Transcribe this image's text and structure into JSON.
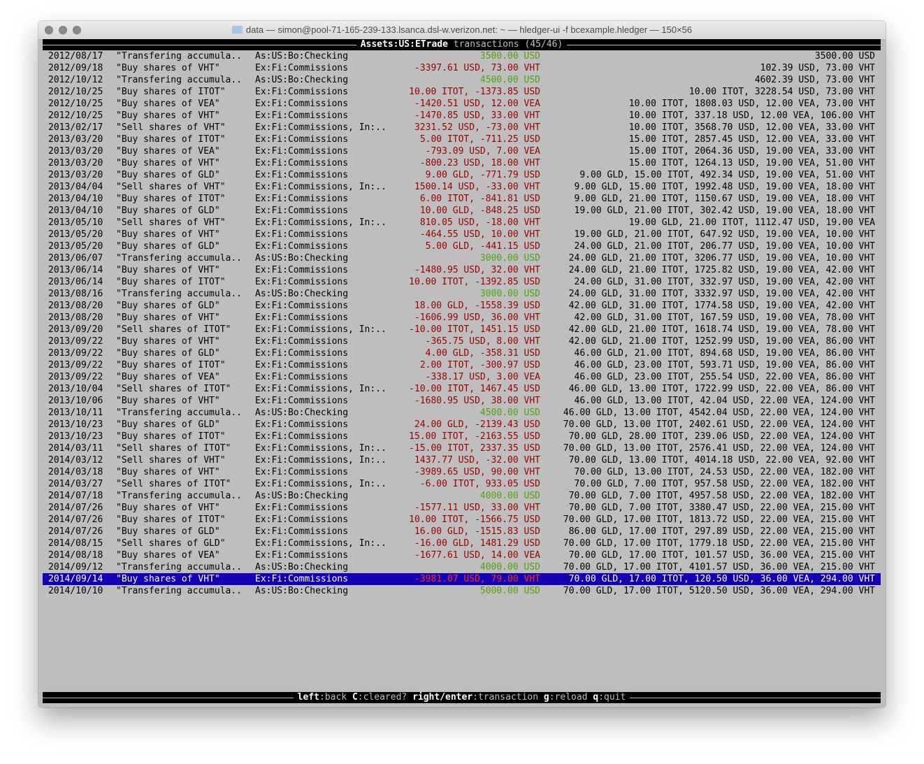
{
  "window": {
    "title": "data — simon@pool-71-165-239-133.lsanca.dsl-w.verizon.net: ~ — hledger-ui -f bcexample.hledger — 150×56"
  },
  "header": {
    "account": "Assets:US:ETrade",
    "rest": " transactions (45/46)"
  },
  "colors": {
    "positive": "#52a20a",
    "negative": "#9a0000",
    "selection": "#1400b4"
  },
  "selected_index": 44,
  "rows": [
    {
      "date": "2012/08/17",
      "desc": "\"Transfering accumula..",
      "account": "As:US:Bo:Checking",
      "amount": "3500.00 USD",
      "sign": "green",
      "balance": "3500.00 USD"
    },
    {
      "date": "2012/09/18",
      "desc": "\"Buy shares of VHT\"",
      "account": "Ex:Fi:Commissions",
      "amount": "-3397.61 USD, 73.00 VHT",
      "sign": "red",
      "balance": "102.39 USD, 73.00 VHT"
    },
    {
      "date": "2012/10/12",
      "desc": "\"Transfering accumula..",
      "account": "As:US:Bo:Checking",
      "amount": "4500.00 USD",
      "sign": "green",
      "balance": "4602.39 USD, 73.00 VHT"
    },
    {
      "date": "2012/10/25",
      "desc": "\"Buy shares of ITOT\"",
      "account": "Ex:Fi:Commissions",
      "amount": "10.00 ITOT, -1373.85 USD",
      "sign": "red",
      "balance": "10.00 ITOT, 3228.54 USD, 73.00 VHT"
    },
    {
      "date": "2012/10/25",
      "desc": "\"Buy shares of VEA\"",
      "account": "Ex:Fi:Commissions",
      "amount": "-1420.51 USD, 12.00 VEA",
      "sign": "red",
      "balance": "10.00 ITOT, 1808.03 USD, 12.00 VEA, 73.00 VHT"
    },
    {
      "date": "2012/10/25",
      "desc": "\"Buy shares of VHT\"",
      "account": "Ex:Fi:Commissions",
      "amount": "-1470.85 USD, 33.00 VHT",
      "sign": "red",
      "balance": "10.00 ITOT, 337.18 USD, 12.00 VEA, 106.00 VHT"
    },
    {
      "date": "2013/02/17",
      "desc": "\"Sell shares of VHT\"",
      "account": "Ex:Fi:Commissions, In:..",
      "amount": "3231.52 USD, -73.00 VHT",
      "sign": "red",
      "balance": "10.00 ITOT, 3568.70 USD, 12.00 VEA, 33.00 VHT"
    },
    {
      "date": "2013/03/20",
      "desc": "\"Buy shares of ITOT\"",
      "account": "Ex:Fi:Commissions",
      "amount": "5.00 ITOT, -711.25 USD",
      "sign": "red",
      "balance": "15.00 ITOT, 2857.45 USD, 12.00 VEA, 33.00 VHT"
    },
    {
      "date": "2013/03/20",
      "desc": "\"Buy shares of VEA\"",
      "account": "Ex:Fi:Commissions",
      "amount": "-793.09 USD, 7.00 VEA",
      "sign": "red",
      "balance": "15.00 ITOT, 2064.36 USD, 19.00 VEA, 33.00 VHT"
    },
    {
      "date": "2013/03/20",
      "desc": "\"Buy shares of VHT\"",
      "account": "Ex:Fi:Commissions",
      "amount": "-800.23 USD, 18.00 VHT",
      "sign": "red",
      "balance": "15.00 ITOT, 1264.13 USD, 19.00 VEA, 51.00 VHT"
    },
    {
      "date": "2013/03/20",
      "desc": "\"Buy shares of GLD\"",
      "account": "Ex:Fi:Commissions",
      "amount": "9.00 GLD, -771.79 USD",
      "sign": "red",
      "balance": "9.00 GLD, 15.00 ITOT, 492.34 USD, 19.00 VEA, 51.00 VHT"
    },
    {
      "date": "2013/04/04",
      "desc": "\"Sell shares of VHT\"",
      "account": "Ex:Fi:Commissions, In:..",
      "amount": "1500.14 USD, -33.00 VHT",
      "sign": "red",
      "balance": "9.00 GLD, 15.00 ITOT, 1992.48 USD, 19.00 VEA, 18.00 VHT"
    },
    {
      "date": "2013/04/10",
      "desc": "\"Buy shares of ITOT\"",
      "account": "Ex:Fi:Commissions",
      "amount": "6.00 ITOT, -841.81 USD",
      "sign": "red",
      "balance": "9.00 GLD, 21.00 ITOT, 1150.67 USD, 19.00 VEA, 18.00 VHT"
    },
    {
      "date": "2013/04/10",
      "desc": "\"Buy shares of GLD\"",
      "account": "Ex:Fi:Commissions",
      "amount": "10.00 GLD, -848.25 USD",
      "sign": "red",
      "balance": "19.00 GLD, 21.00 ITOT, 302.42 USD, 19.00 VEA, 18.00 VHT"
    },
    {
      "date": "2013/05/10",
      "desc": "\"Sell shares of VHT\"",
      "account": "Ex:Fi:Commissions, In:..",
      "amount": "810.05 USD, -18.00 VHT",
      "sign": "red",
      "balance": "19.00 GLD, 21.00 ITOT, 1112.47 USD, 19.00 VEA"
    },
    {
      "date": "2013/05/20",
      "desc": "\"Buy shares of VHT\"",
      "account": "Ex:Fi:Commissions",
      "amount": "-464.55 USD, 10.00 VHT",
      "sign": "red",
      "balance": "19.00 GLD, 21.00 ITOT, 647.92 USD, 19.00 VEA, 10.00 VHT"
    },
    {
      "date": "2013/05/20",
      "desc": "\"Buy shares of GLD\"",
      "account": "Ex:Fi:Commissions",
      "amount": "5.00 GLD, -441.15 USD",
      "sign": "red",
      "balance": "24.00 GLD, 21.00 ITOT, 206.77 USD, 19.00 VEA, 10.00 VHT"
    },
    {
      "date": "2013/06/07",
      "desc": "\"Transfering accumula..",
      "account": "As:US:Bo:Checking",
      "amount": "3000.00 USD",
      "sign": "green",
      "balance": "24.00 GLD, 21.00 ITOT, 3206.77 USD, 19.00 VEA, 10.00 VHT"
    },
    {
      "date": "2013/06/14",
      "desc": "\"Buy shares of VHT\"",
      "account": "Ex:Fi:Commissions",
      "amount": "-1480.95 USD, 32.00 VHT",
      "sign": "red",
      "balance": "24.00 GLD, 21.00 ITOT, 1725.82 USD, 19.00 VEA, 42.00 VHT"
    },
    {
      "date": "2013/06/14",
      "desc": "\"Buy shares of ITOT\"",
      "account": "Ex:Fi:Commissions",
      "amount": "10.00 ITOT, -1392.85 USD",
      "sign": "red",
      "balance": "24.00 GLD, 31.00 ITOT, 332.97 USD, 19.00 VEA, 42.00 VHT"
    },
    {
      "date": "2013/08/16",
      "desc": "\"Transfering accumula..",
      "account": "As:US:Bo:Checking",
      "amount": "3000.00 USD",
      "sign": "green",
      "balance": "24.00 GLD, 31.00 ITOT, 3332.97 USD, 19.00 VEA, 42.00 VHT"
    },
    {
      "date": "2013/08/20",
      "desc": "\"Buy shares of GLD\"",
      "account": "Ex:Fi:Commissions",
      "amount": "18.00 GLD, -1558.39 USD",
      "sign": "red",
      "balance": "42.00 GLD, 31.00 ITOT, 1774.58 USD, 19.00 VEA, 42.00 VHT"
    },
    {
      "date": "2013/08/20",
      "desc": "\"Buy shares of VHT\"",
      "account": "Ex:Fi:Commissions",
      "amount": "-1606.99 USD, 36.00 VHT",
      "sign": "red",
      "balance": "42.00 GLD, 31.00 ITOT, 167.59 USD, 19.00 VEA, 78.00 VHT"
    },
    {
      "date": "2013/09/20",
      "desc": "\"Sell shares of ITOT\"",
      "account": "Ex:Fi:Commissions, In:..",
      "amount": "-10.00 ITOT, 1451.15 USD",
      "sign": "red",
      "balance": "42.00 GLD, 21.00 ITOT, 1618.74 USD, 19.00 VEA, 78.00 VHT"
    },
    {
      "date": "2013/09/22",
      "desc": "\"Buy shares of VHT\"",
      "account": "Ex:Fi:Commissions",
      "amount": "-365.75 USD, 8.00 VHT",
      "sign": "red",
      "balance": "42.00 GLD, 21.00 ITOT, 1252.99 USD, 19.00 VEA, 86.00 VHT"
    },
    {
      "date": "2013/09/22",
      "desc": "\"Buy shares of GLD\"",
      "account": "Ex:Fi:Commissions",
      "amount": "4.00 GLD, -358.31 USD",
      "sign": "red",
      "balance": "46.00 GLD, 21.00 ITOT, 894.68 USD, 19.00 VEA, 86.00 VHT"
    },
    {
      "date": "2013/09/22",
      "desc": "\"Buy shares of ITOT\"",
      "account": "Ex:Fi:Commissions",
      "amount": "2.00 ITOT, -300.97 USD",
      "sign": "red",
      "balance": "46.00 GLD, 23.00 ITOT, 593.71 USD, 19.00 VEA, 86.00 VHT"
    },
    {
      "date": "2013/09/22",
      "desc": "\"Buy shares of VEA\"",
      "account": "Ex:Fi:Commissions",
      "amount": "-338.17 USD, 3.00 VEA",
      "sign": "red",
      "balance": "46.00 GLD, 23.00 ITOT, 255.54 USD, 22.00 VEA, 86.00 VHT"
    },
    {
      "date": "2013/10/04",
      "desc": "\"Sell shares of ITOT\"",
      "account": "Ex:Fi:Commissions, In:..",
      "amount": "-10.00 ITOT, 1467.45 USD",
      "sign": "red",
      "balance": "46.00 GLD, 13.00 ITOT, 1722.99 USD, 22.00 VEA, 86.00 VHT"
    },
    {
      "date": "2013/10/06",
      "desc": "\"Buy shares of VHT\"",
      "account": "Ex:Fi:Commissions",
      "amount": "-1680.95 USD, 38.00 VHT",
      "sign": "red",
      "balance": "46.00 GLD, 13.00 ITOT, 42.04 USD, 22.00 VEA, 124.00 VHT"
    },
    {
      "date": "2013/10/11",
      "desc": "\"Transfering accumula..",
      "account": "As:US:Bo:Checking",
      "amount": "4500.00 USD",
      "sign": "green",
      "balance": "46.00 GLD, 13.00 ITOT, 4542.04 USD, 22.00 VEA, 124.00 VHT"
    },
    {
      "date": "2013/10/23",
      "desc": "\"Buy shares of GLD\"",
      "account": "Ex:Fi:Commissions",
      "amount": "24.00 GLD, -2139.43 USD",
      "sign": "red",
      "balance": "70.00 GLD, 13.00 ITOT, 2402.61 USD, 22.00 VEA, 124.00 VHT"
    },
    {
      "date": "2013/10/23",
      "desc": "\"Buy shares of ITOT\"",
      "account": "Ex:Fi:Commissions",
      "amount": "15.00 ITOT, -2163.55 USD",
      "sign": "red",
      "balance": "70.00 GLD, 28.00 ITOT, 239.06 USD, 22.00 VEA, 124.00 VHT"
    },
    {
      "date": "2014/03/11",
      "desc": "\"Sell shares of ITOT\"",
      "account": "Ex:Fi:Commissions, In:..",
      "amount": "-15.00 ITOT, 2337.35 USD",
      "sign": "red",
      "balance": "70.00 GLD, 13.00 ITOT, 2576.41 USD, 22.00 VEA, 124.00 VHT"
    },
    {
      "date": "2014/03/12",
      "desc": "\"Sell shares of VHT\"",
      "account": "Ex:Fi:Commissions, In:..",
      "amount": "1437.77 USD, -32.00 VHT",
      "sign": "red",
      "balance": "70.00 GLD, 13.00 ITOT, 4014.18 USD, 22.00 VEA, 92.00 VHT"
    },
    {
      "date": "2014/03/18",
      "desc": "\"Buy shares of VHT\"",
      "account": "Ex:Fi:Commissions",
      "amount": "-3989.65 USD, 90.00 VHT",
      "sign": "red",
      "balance": "70.00 GLD, 13.00 ITOT, 24.53 USD, 22.00 VEA, 182.00 VHT"
    },
    {
      "date": "2014/03/27",
      "desc": "\"Sell shares of ITOT\"",
      "account": "Ex:Fi:Commissions, In:..",
      "amount": "-6.00 ITOT, 933.05 USD",
      "sign": "red",
      "balance": "70.00 GLD, 7.00 ITOT, 957.58 USD, 22.00 VEA, 182.00 VHT"
    },
    {
      "date": "2014/07/18",
      "desc": "\"Transfering accumula..",
      "account": "As:US:Bo:Checking",
      "amount": "4000.00 USD",
      "sign": "green",
      "balance": "70.00 GLD, 7.00 ITOT, 4957.58 USD, 22.00 VEA, 182.00 VHT"
    },
    {
      "date": "2014/07/26",
      "desc": "\"Buy shares of VHT\"",
      "account": "Ex:Fi:Commissions",
      "amount": "-1577.11 USD, 33.00 VHT",
      "sign": "red",
      "balance": "70.00 GLD, 7.00 ITOT, 3380.47 USD, 22.00 VEA, 215.00 VHT"
    },
    {
      "date": "2014/07/26",
      "desc": "\"Buy shares of ITOT\"",
      "account": "Ex:Fi:Commissions",
      "amount": "10.00 ITOT, -1566.75 USD",
      "sign": "red",
      "balance": "70.00 GLD, 17.00 ITOT, 1813.72 USD, 22.00 VEA, 215.00 VHT"
    },
    {
      "date": "2014/07/26",
      "desc": "\"Buy shares of GLD\"",
      "account": "Ex:Fi:Commissions",
      "amount": "16.00 GLD, -1515.83 USD",
      "sign": "red",
      "balance": "86.00 GLD, 17.00 ITOT, 297.89 USD, 22.00 VEA, 215.00 VHT"
    },
    {
      "date": "2014/08/15",
      "desc": "\"Sell shares of GLD\"",
      "account": "Ex:Fi:Commissions, In:..",
      "amount": "-16.00 GLD, 1481.29 USD",
      "sign": "red",
      "balance": "70.00 GLD, 17.00 ITOT, 1779.18 USD, 22.00 VEA, 215.00 VHT"
    },
    {
      "date": "2014/08/18",
      "desc": "\"Buy shares of VEA\"",
      "account": "Ex:Fi:Commissions",
      "amount": "-1677.61 USD, 14.00 VEA",
      "sign": "red",
      "balance": "70.00 GLD, 17.00 ITOT, 101.57 USD, 36.00 VEA, 215.00 VHT"
    },
    {
      "date": "2014/09/12",
      "desc": "\"Transfering accumula..",
      "account": "As:US:Bo:Checking",
      "amount": "4000.00 USD",
      "sign": "green",
      "balance": "70.00 GLD, 17.00 ITOT, 4101.57 USD, 36.00 VEA, 215.00 VHT"
    },
    {
      "date": "2014/09/14",
      "desc": "\"Buy shares of VHT\"",
      "account": "Ex:Fi:Commissions",
      "amount": "-3981.07 USD, 79.00 VHT",
      "sign": "red",
      "balance": "70.00 GLD, 17.00 ITOT, 120.50 USD, 36.00 VEA, 294.00 VHT"
    },
    {
      "date": "2014/10/10",
      "desc": "\"Transfering accumula..",
      "account": "As:US:Bo:Checking",
      "amount": "5000.00 USD",
      "sign": "green",
      "balance": "70.00 GLD, 17.00 ITOT, 5120.50 USD, 36.00 VEA, 294.00 VHT"
    }
  ],
  "footer": {
    "keys": [
      {
        "key": "left",
        "action": "back"
      },
      {
        "key": "C",
        "action": "cleared?"
      },
      {
        "key": "right/enter",
        "action": "transaction"
      },
      {
        "key": "g",
        "action": "reload"
      },
      {
        "key": "q",
        "action": "quit"
      }
    ]
  }
}
